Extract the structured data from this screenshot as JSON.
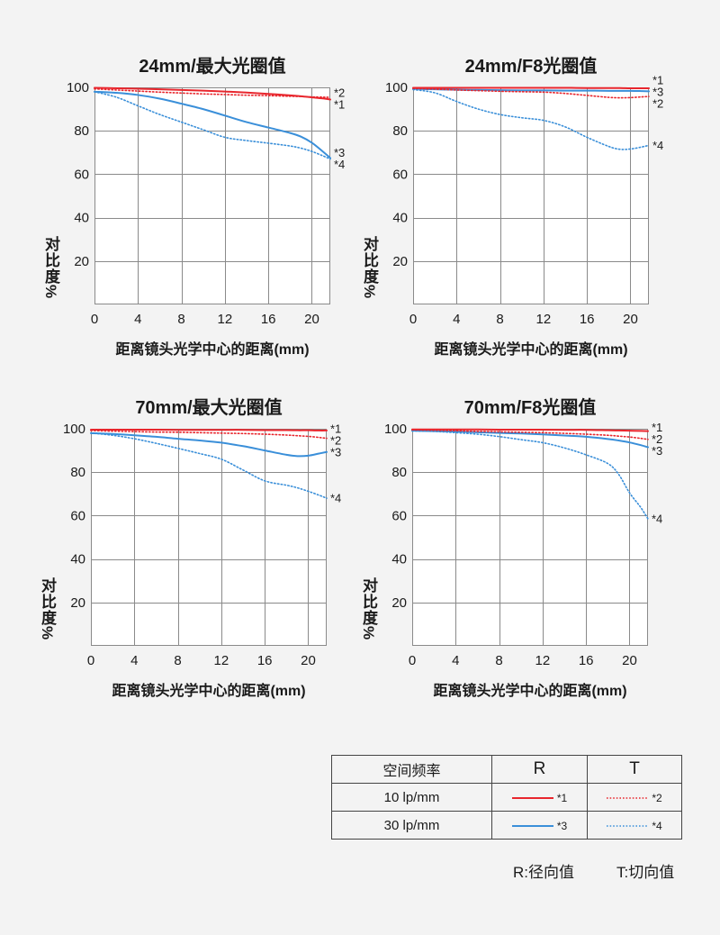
{
  "colors": {
    "red": "#e8262d",
    "blue": "#3a8fd9",
    "grid": "#8a8a8a",
    "background": "#f3f3f3",
    "plot_background": "#ffffff",
    "text": "#1a1a1a"
  },
  "chart_data": [
    {
      "type": "line",
      "title": "24mm/最大光圈值",
      "xlabel": "距离镜头光学中心的距离(mm)",
      "ylabel": "对比度%",
      "xlim": [
        0,
        21.7
      ],
      "ylim": [
        0,
        100
      ],
      "xticks": [
        0,
        4,
        8,
        12,
        16,
        20
      ],
      "yticks": [
        20,
        40,
        60,
        80,
        100
      ],
      "grid": true,
      "x": [
        0,
        2,
        4,
        6,
        8,
        10,
        12,
        14,
        16,
        18,
        19,
        20,
        21,
        21.7
      ],
      "series": [
        {
          "name": "*1",
          "color": "#e8262d",
          "style": "solid",
          "values": [
            99.8,
            99.6,
            99.4,
            99.1,
            98.8,
            98.5,
            98.1,
            97.6,
            97.0,
            96.3,
            95.9,
            95.4,
            94.9,
            94.4
          ]
        },
        {
          "name": "*2",
          "color": "#e8262d",
          "style": "dotted",
          "values": [
            99.3,
            98.8,
            98.3,
            97.8,
            97.4,
            97.0,
            96.7,
            96.4,
            96.2,
            95.9,
            95.8,
            95.6,
            95.5,
            95.4
          ]
        },
        {
          "name": "*3",
          "color": "#3a8fd9",
          "style": "solid",
          "values": [
            98.0,
            97.5,
            96.5,
            94.8,
            92.5,
            90.0,
            87.0,
            84.0,
            81.5,
            79.0,
            77.3,
            74.5,
            70.5,
            67.5
          ]
        },
        {
          "name": "*4",
          "color": "#3a8fd9",
          "style": "dotted",
          "values": [
            98.0,
            95.5,
            91.5,
            87.5,
            84.0,
            80.5,
            77.0,
            75.5,
            74.3,
            73.0,
            72.0,
            70.5,
            68.5,
            67.0
          ]
        }
      ]
    },
    {
      "type": "line",
      "title": "24mm/F8光圈值",
      "xlabel": "距离镜头光学中心的距离(mm)",
      "ylabel": "对比度%",
      "xlim": [
        0,
        21.7
      ],
      "ylim": [
        0,
        100
      ],
      "xticks": [
        0,
        4,
        8,
        12,
        16,
        20
      ],
      "yticks": [
        20,
        40,
        60,
        80,
        100
      ],
      "grid": true,
      "x": [
        0,
        2,
        4,
        6,
        8,
        10,
        12,
        14,
        16,
        18,
        19,
        20,
        21,
        21.7
      ],
      "series": [
        {
          "name": "*1",
          "color": "#e8262d",
          "style": "solid",
          "values": [
            99.8,
            99.8,
            99.8,
            99.8,
            99.8,
            99.8,
            99.8,
            99.8,
            99.7,
            99.7,
            99.7,
            99.6,
            99.6,
            99.6
          ]
        },
        {
          "name": "*2",
          "color": "#e8262d",
          "style": "dotted",
          "values": [
            99.5,
            99.2,
            98.8,
            98.5,
            98.2,
            98.0,
            97.8,
            97.2,
            96.3,
            95.4,
            95.2,
            95.3,
            95.6,
            95.8
          ]
        },
        {
          "name": "*3",
          "color": "#3a8fd9",
          "style": "solid",
          "values": [
            99.3,
            99.1,
            98.9,
            98.8,
            98.7,
            98.6,
            98.6,
            98.5,
            98.5,
            98.4,
            98.4,
            98.4,
            98.3,
            98.2
          ]
        },
        {
          "name": "*4",
          "color": "#3a8fd9",
          "style": "dotted",
          "values": [
            99.0,
            97.5,
            93.5,
            90.0,
            87.5,
            86.0,
            84.8,
            81.8,
            77.0,
            72.8,
            71.5,
            71.6,
            72.5,
            73.3
          ]
        }
      ]
    },
    {
      "type": "line",
      "title": "70mm/最大光圈值",
      "xlabel": "距离镜头光学中心的距离(mm)",
      "ylabel": "对比度%",
      "xlim": [
        0,
        21.7
      ],
      "ylim": [
        0,
        100
      ],
      "xticks": [
        0,
        4,
        8,
        12,
        16,
        20
      ],
      "yticks": [
        20,
        40,
        60,
        80,
        100
      ],
      "grid": true,
      "x": [
        0,
        2,
        4,
        6,
        8,
        10,
        12,
        14,
        16,
        18,
        19,
        20,
        21,
        21.7
      ],
      "series": [
        {
          "name": "*1",
          "color": "#e8262d",
          "style": "solid",
          "values": [
            99.6,
            99.6,
            99.6,
            99.6,
            99.5,
            99.5,
            99.5,
            99.5,
            99.4,
            99.4,
            99.3,
            99.3,
            99.2,
            99.2
          ]
        },
        {
          "name": "*2",
          "color": "#e8262d",
          "style": "dotted",
          "values": [
            99.2,
            98.9,
            98.7,
            98.5,
            98.4,
            98.2,
            98.0,
            97.8,
            97.5,
            97.1,
            96.8,
            96.5,
            96.0,
            95.6
          ]
        },
        {
          "name": "*3",
          "color": "#3a8fd9",
          "style": "solid",
          "values": [
            98.0,
            97.6,
            97.0,
            96.3,
            95.4,
            94.6,
            93.6,
            92.0,
            90.0,
            88.0,
            87.4,
            87.6,
            88.6,
            89.3
          ]
        },
        {
          "name": "*4",
          "color": "#3a8fd9",
          "style": "dotted",
          "values": [
            98.0,
            97.0,
            95.4,
            93.3,
            91.0,
            88.6,
            86.0,
            81.0,
            76.0,
            74.0,
            72.8,
            71.2,
            69.4,
            68.0
          ]
        }
      ]
    },
    {
      "type": "line",
      "title": "70mm/F8光圈值",
      "xlabel": "距离镜头光学中心的距离(mm)",
      "ylabel": "对比度%",
      "xlim": [
        0,
        21.7
      ],
      "ylim": [
        0,
        100
      ],
      "xticks": [
        0,
        4,
        8,
        12,
        16,
        20
      ],
      "yticks": [
        20,
        40,
        60,
        80,
        100
      ],
      "grid": true,
      "x": [
        0,
        2,
        4,
        6,
        8,
        10,
        12,
        14,
        16,
        18,
        19,
        20,
        21,
        21.7
      ],
      "series": [
        {
          "name": "*1",
          "color": "#e8262d",
          "style": "solid",
          "values": [
            99.7,
            99.7,
            99.7,
            99.7,
            99.6,
            99.6,
            99.6,
            99.5,
            99.5,
            99.3,
            99.2,
            99.1,
            99.0,
            98.9
          ]
        },
        {
          "name": "*2",
          "color": "#e8262d",
          "style": "dotted",
          "values": [
            99.5,
            99.3,
            99.1,
            98.8,
            98.6,
            98.4,
            98.2,
            97.9,
            97.5,
            97.0,
            96.6,
            96.2,
            95.6,
            95.1
          ]
        },
        {
          "name": "*3",
          "color": "#3a8fd9",
          "style": "solid",
          "values": [
            99.1,
            98.9,
            98.7,
            98.4,
            98.1,
            97.8,
            97.4,
            96.9,
            96.3,
            95.3,
            94.6,
            93.7,
            92.5,
            91.5
          ]
        },
        {
          "name": "*4",
          "color": "#3a8fd9",
          "style": "dotted",
          "values": [
            99.0,
            98.8,
            98.2,
            97.5,
            96.4,
            95.0,
            93.6,
            91.2,
            88.0,
            84.0,
            79.0,
            70.5,
            64.0,
            58.5
          ]
        }
      ]
    }
  ],
  "legend": {
    "header": {
      "frequency": "空间频率",
      "radial": "R",
      "tangential": "T"
    },
    "rows": [
      {
        "frequency": "10 lp/mm",
        "radial_label": "*1",
        "tangential_label": "*2",
        "color": "#e8262d"
      },
      {
        "frequency": "30 lp/mm",
        "radial_label": "*3",
        "tangential_label": "*4",
        "color": "#3a8fd9"
      }
    ]
  },
  "notes": {
    "radial": "R:径向值",
    "tangential": "T:切向值"
  }
}
